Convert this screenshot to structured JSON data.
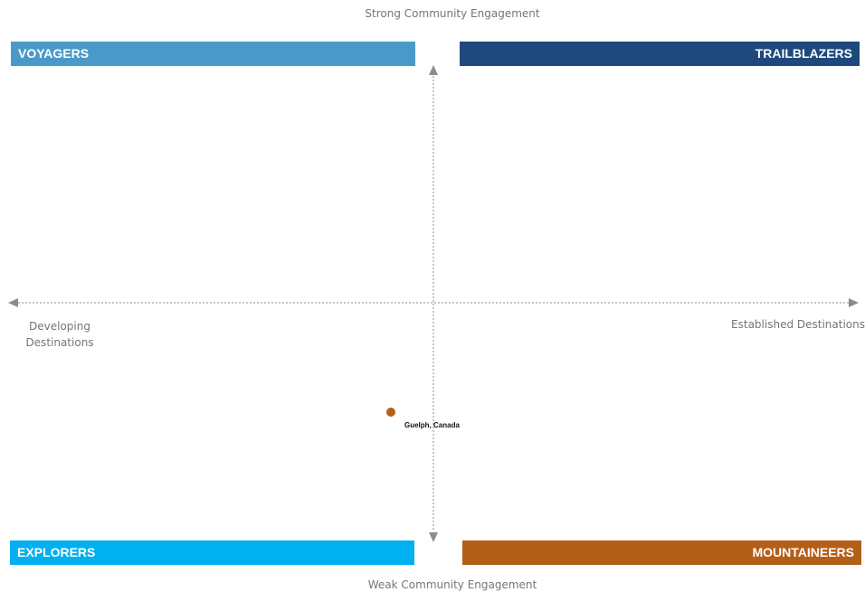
{
  "axes": {
    "top": "Strong Community Engagement",
    "bottom": "Weak Community Engagement",
    "left_line1": "Developing",
    "left_line2": "Destinations",
    "right": "Established Destinations"
  },
  "quadrants": {
    "top_left": {
      "label": "VOYAGERS",
      "color": "#4a9ac9"
    },
    "top_right": {
      "label": "TRAILBLAZERS",
      "color": "#1f497d"
    },
    "bottom_left": {
      "label": "EXPLORERS",
      "color": "#00b0f0"
    },
    "bottom_right": {
      "label": "MOUNTAINEERS",
      "color": "#b45f17"
    }
  },
  "points": [
    {
      "label": "Guelph, Canada",
      "color": "#b45f17"
    }
  ],
  "colors": {
    "axis": "#8c8c8c"
  }
}
